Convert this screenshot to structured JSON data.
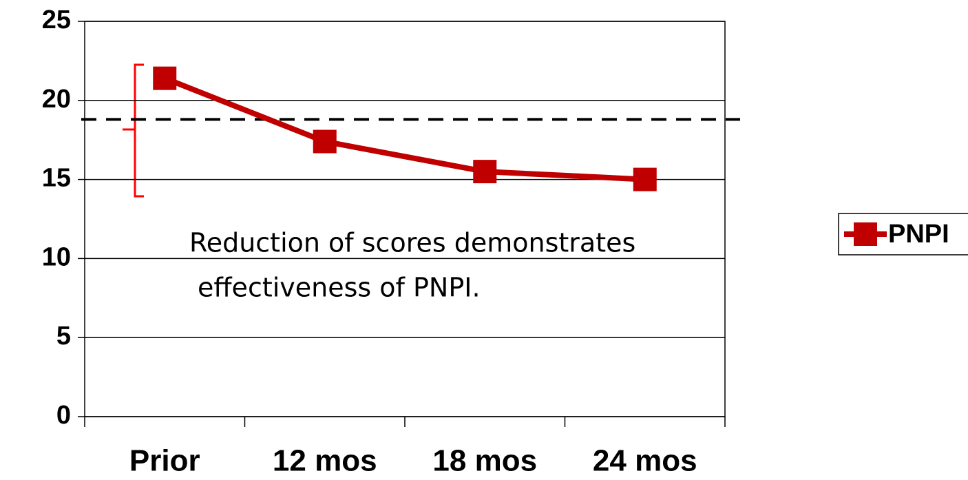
{
  "chart_data": {
    "type": "line",
    "categories": [
      "Prior",
      "12 mos",
      "18 mos",
      "24 mos"
    ],
    "series": [
      {
        "name": "PNPI",
        "color": "#c00000",
        "values": [
          21.4,
          17.4,
          15.5,
          15.0
        ]
      }
    ],
    "ylim": [
      0,
      25
    ],
    "yticks": [
      0,
      5,
      10,
      15,
      20,
      25
    ],
    "grid": true,
    "reference_line": 18.8,
    "annotation": [
      "Reduction of scores demonstrates",
      "effectiveness of PNPI."
    ],
    "legend": "right"
  }
}
